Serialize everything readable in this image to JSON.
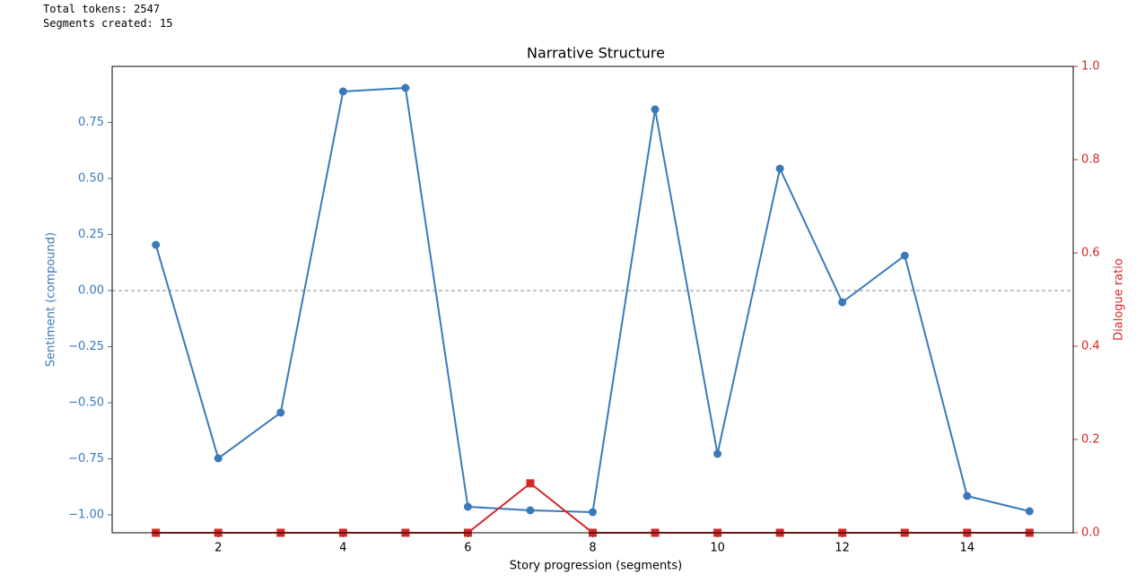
{
  "console": [
    "Total tokens: 2547",
    "Segments created: 15"
  ],
  "chart_data": {
    "type": "line",
    "title": "Narrative Structure",
    "xlabel": "Story progression (segments)",
    "ylabel": "Sentiment (compound)",
    "y2label": "Dialogue ratio",
    "ylabel_color": "#3a7ab8",
    "y2label_color": "#d62728",
    "x": [
      1,
      2,
      3,
      4,
      5,
      6,
      7,
      8,
      9,
      10,
      11,
      12,
      13,
      14,
      15
    ],
    "series": [
      {
        "color": "#3a7ab8",
        "marker": "circle",
        "axis": "y",
        "values": [
          0.204,
          -0.748,
          -0.544,
          0.888,
          0.904,
          -0.964,
          -0.98,
          -0.988,
          0.808,
          -0.728,
          0.544,
          -0.052,
          0.156,
          -0.916,
          -0.984
        ]
      },
      {
        "color": "#d62728",
        "marker": "square",
        "axis": "y2",
        "values": [
          0,
          0,
          0,
          0,
          0,
          0,
          0.106,
          0,
          0,
          0,
          0,
          0,
          0,
          0,
          0
        ]
      }
    ],
    "xlim": [
      0.3,
      15.7
    ],
    "xticks": [
      2,
      4,
      6,
      8,
      10,
      12,
      14
    ],
    "ylim": [
      -1.08,
      1.0
    ],
    "yticks": [
      {
        "value": -1,
        "label": "−1.00"
      },
      {
        "value": -0.75,
        "label": "−0.75"
      },
      {
        "value": -0.5,
        "label": "−0.50"
      },
      {
        "value": -0.25,
        "label": "−0.25"
      },
      {
        "value": 0,
        "label": "0.00"
      },
      {
        "value": 0.25,
        "label": "0.25"
      },
      {
        "value": 0.5,
        "label": "0.50"
      },
      {
        "value": 0.75,
        "label": "0.75"
      }
    ],
    "y2lim": [
      0,
      1
    ],
    "y2ticks": [
      {
        "value": 0,
        "label": "0.0"
      },
      {
        "value": 0.2,
        "label": "0.2"
      },
      {
        "value": 0.4,
        "label": "0.4"
      },
      {
        "value": 0.6,
        "label": "0.6"
      },
      {
        "value": 0.8,
        "label": "0.8"
      },
      {
        "value": 1,
        "label": "1.0"
      }
    ],
    "hline": 0
  }
}
